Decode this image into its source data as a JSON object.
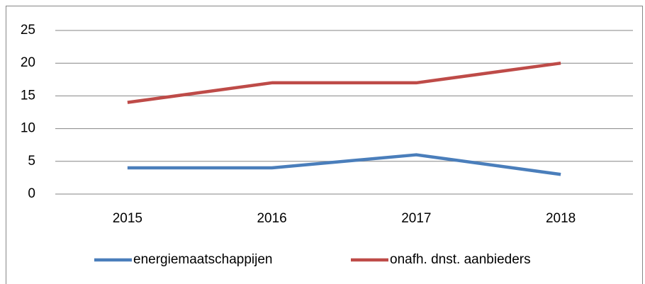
{
  "chart_data": {
    "type": "line",
    "categories": [
      "2015",
      "2016",
      "2017",
      "2018"
    ],
    "series": [
      {
        "name": "energiemaatschappijen",
        "color": "#4a7ebb",
        "values": [
          4,
          4,
          6,
          3
        ]
      },
      {
        "name": "onafh. dnst. aanbieders",
        "color": "#be4b48",
        "values": [
          14,
          17,
          17,
          20
        ]
      }
    ],
    "ylim": [
      0,
      25
    ],
    "yticks": [
      0,
      5,
      10,
      15,
      20,
      25
    ],
    "grid": true,
    "legend": "bottom"
  }
}
